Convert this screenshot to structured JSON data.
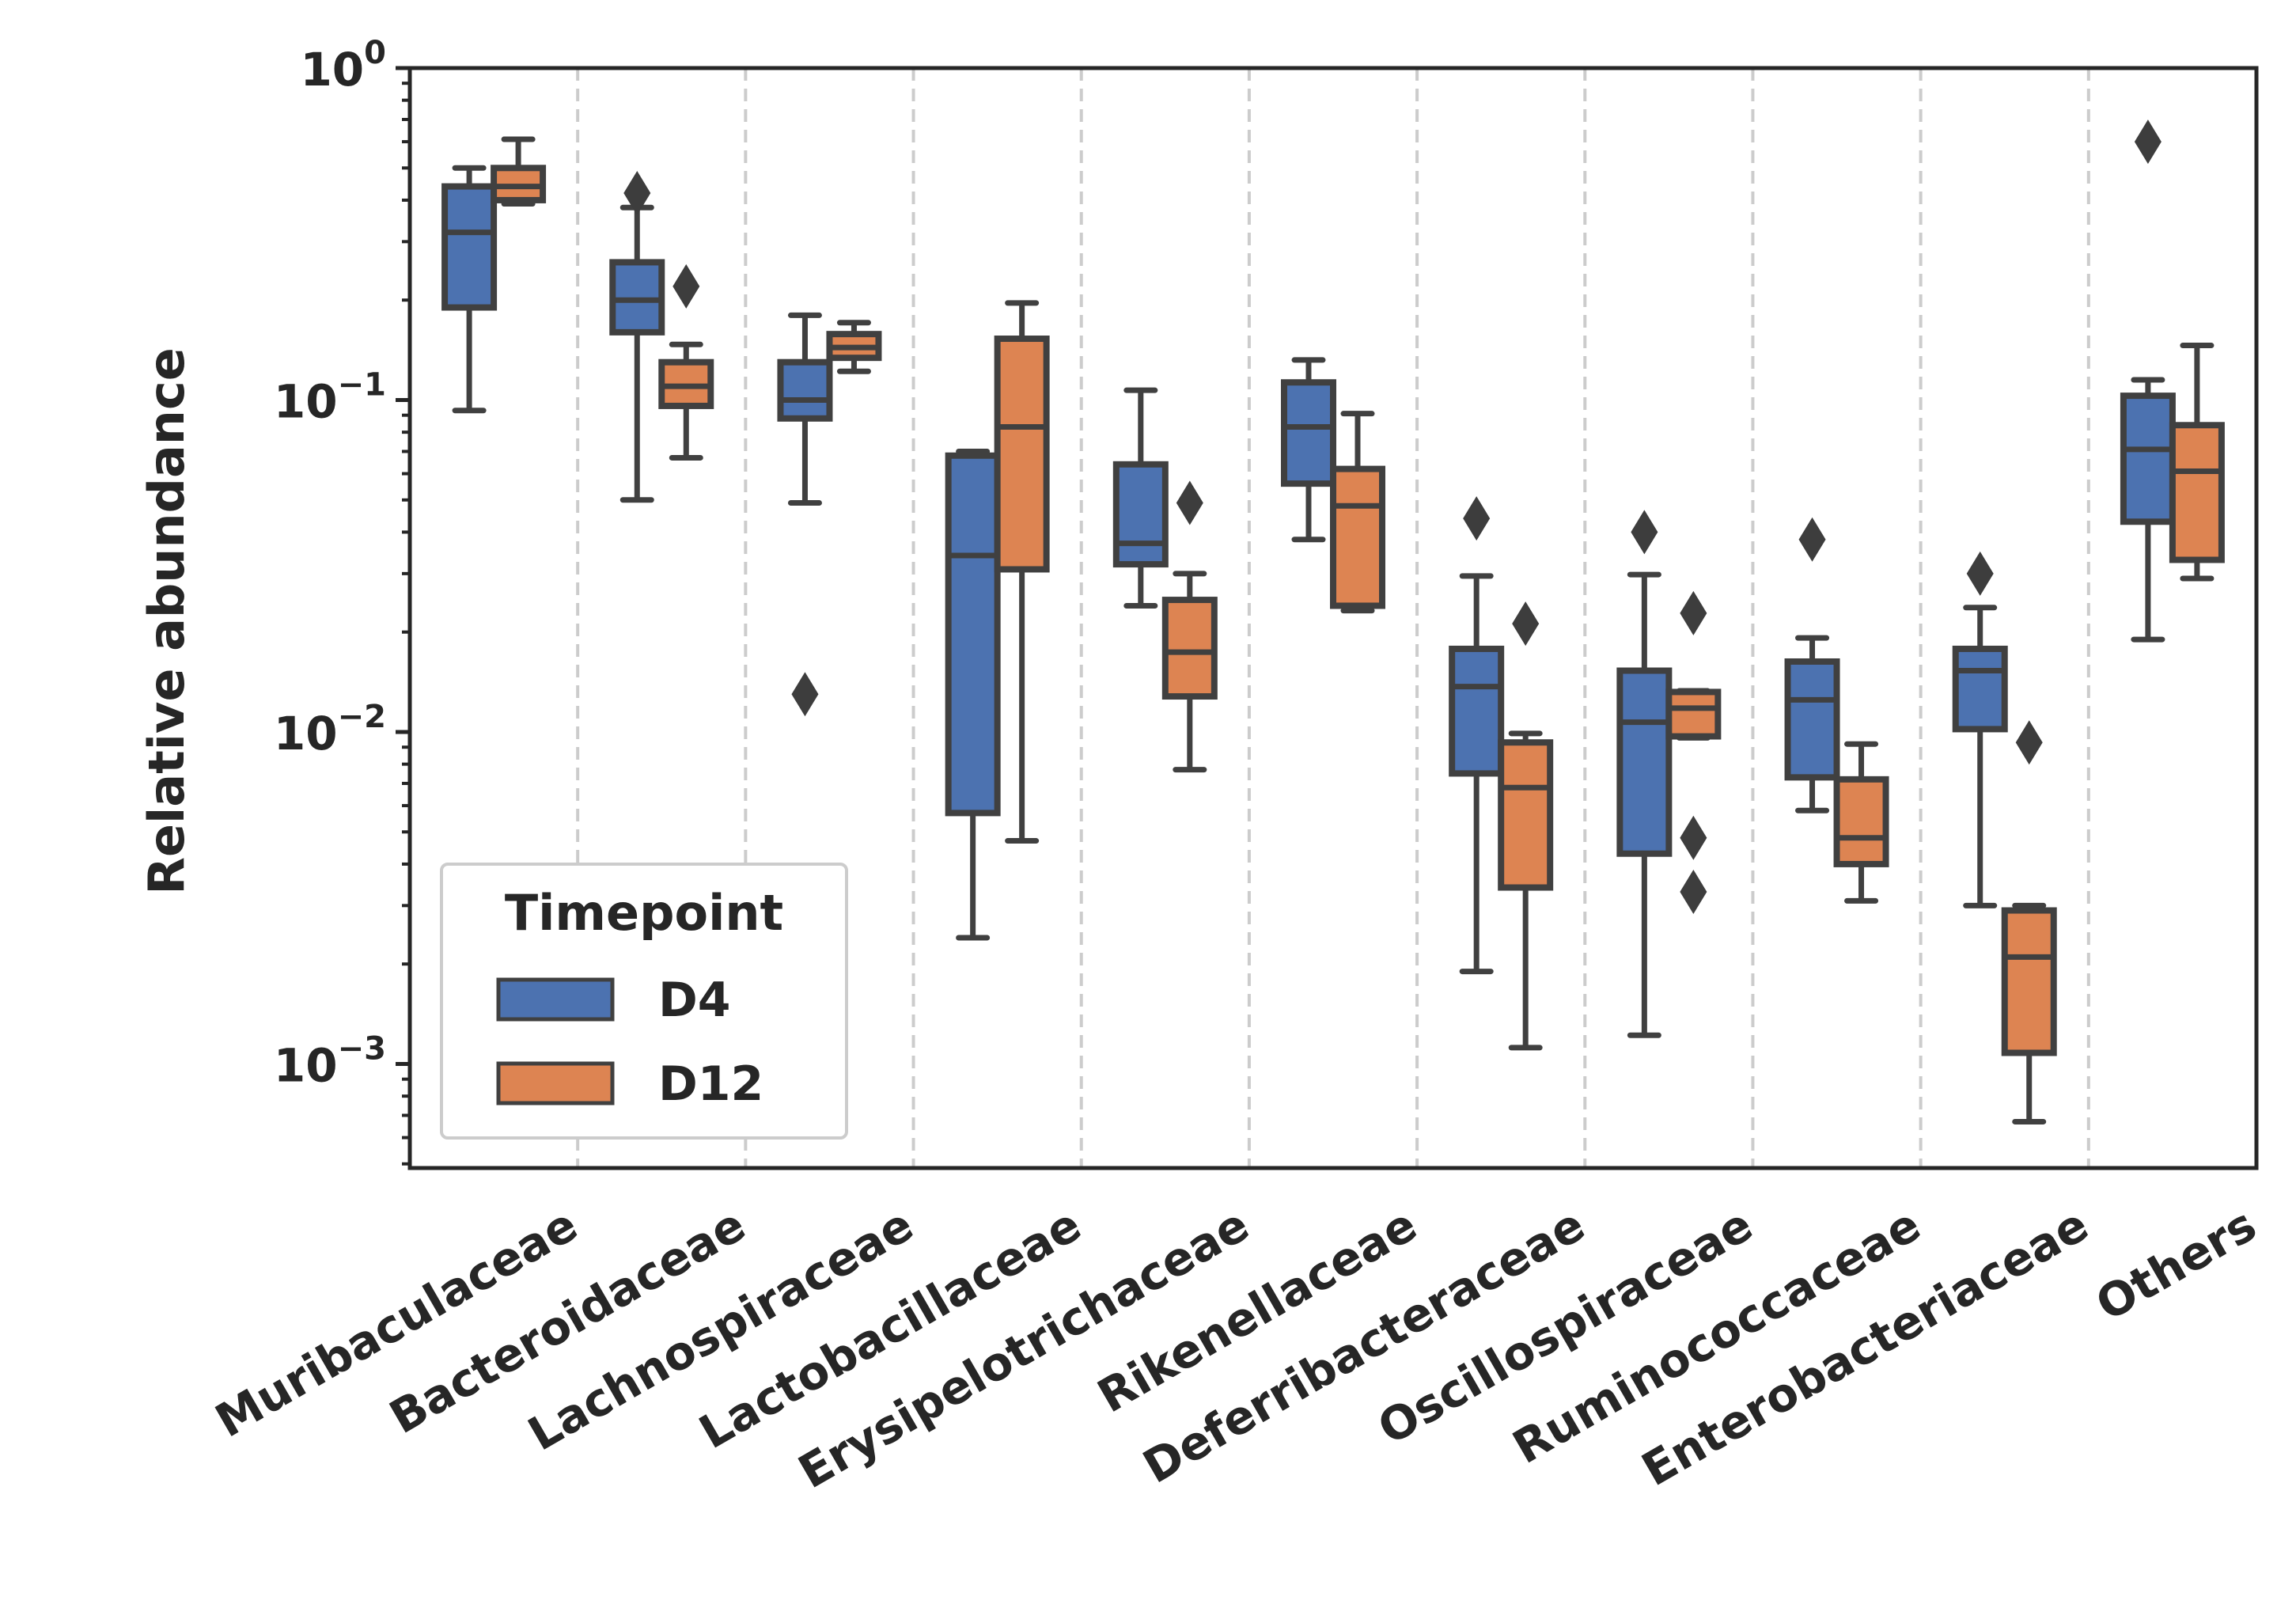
{
  "chart_data": {
    "type": "box",
    "xlabel": "",
    "ylabel": "Relative abundance",
    "yscale": "log",
    "ylim": [
      0.00048,
      1.0
    ],
    "yticks": [
      {
        "value": 1,
        "label_base": "10",
        "label_exp": "0"
      },
      {
        "value": 0.1,
        "label_base": "10",
        "label_exp": "−1"
      },
      {
        "value": 0.01,
        "label_base": "10",
        "label_exp": "−2"
      },
      {
        "value": 0.001,
        "label_base": "10",
        "label_exp": "−3"
      }
    ],
    "grid": "vertical dashed separators between categories",
    "legend": {
      "title": "Timepoint",
      "placement": "lower-left",
      "entries": [
        "D4",
        "D12"
      ]
    },
    "colors": {
      "D4": "#4c72b0",
      "D12": "#dd8452",
      "edge": "#404040",
      "separator": "#cccccc"
    },
    "categories": [
      "Muribaculaceae",
      "Bacteroidaceae",
      "Lachnospiraceae",
      "Lactobacillaceae",
      "Erysipelotrichaceae",
      "Rikenellaceae",
      "Deferribacteraceae",
      "Oscillospiraceae",
      "Ruminococcaceae",
      "Enterobacteriaceae",
      "Others"
    ],
    "series": [
      {
        "name": "D4",
        "boxes": [
          {
            "whislo": 0.093,
            "q1": 0.19,
            "med": 0.32,
            "q3": 0.44,
            "whishi": 0.5,
            "fliers": []
          },
          {
            "whislo": 0.05,
            "q1": 0.16,
            "med": 0.2,
            "q3": 0.26,
            "whishi": 0.38,
            "fliers": [
              0.42
            ]
          },
          {
            "whislo": 0.049,
            "q1": 0.088,
            "med": 0.1,
            "q3": 0.13,
            "whishi": 0.18,
            "fliers": [
              0.013
            ]
          },
          {
            "whislo": 0.0024,
            "q1": 0.0057,
            "med": 0.034,
            "q3": 0.068,
            "whishi": 0.07,
            "fliers": []
          },
          {
            "whislo": 0.024,
            "q1": 0.032,
            "med": 0.037,
            "q3": 0.064,
            "whishi": 0.107,
            "fliers": []
          },
          {
            "whislo": 0.038,
            "q1": 0.056,
            "med": 0.083,
            "q3": 0.113,
            "whishi": 0.132,
            "fliers": []
          },
          {
            "whislo": 0.0019,
            "q1": 0.0075,
            "med": 0.0137,
            "q3": 0.0178,
            "whishi": 0.0295,
            "fliers": [
              0.044
            ]
          },
          {
            "whislo": 0.00122,
            "q1": 0.0043,
            "med": 0.0107,
            "q3": 0.0153,
            "whishi": 0.0298,
            "fliers": [
              0.04
            ]
          },
          {
            "whislo": 0.0058,
            "q1": 0.0073,
            "med": 0.0125,
            "q3": 0.0163,
            "whishi": 0.0192,
            "fliers": [
              0.038
            ]
          },
          {
            "whislo": 0.003,
            "q1": 0.0102,
            "med": 0.0153,
            "q3": 0.0178,
            "whishi": 0.0237,
            "fliers": [
              0.03
            ]
          },
          {
            "whislo": 0.019,
            "q1": 0.043,
            "med": 0.071,
            "q3": 0.103,
            "whishi": 0.115,
            "fliers": [
              0.6
            ]
          }
        ]
      },
      {
        "name": "D12",
        "boxes": [
          {
            "whislo": 0.39,
            "q1": 0.4,
            "med": 0.44,
            "q3": 0.5,
            "whishi": 0.61,
            "fliers": []
          },
          {
            "whislo": 0.067,
            "q1": 0.096,
            "med": 0.11,
            "q3": 0.13,
            "whishi": 0.147,
            "fliers": [
              0.22
            ]
          },
          {
            "whislo": 0.122,
            "q1": 0.134,
            "med": 0.144,
            "q3": 0.158,
            "whishi": 0.171,
            "fliers": []
          },
          {
            "whislo": 0.0047,
            "q1": 0.0309,
            "med": 0.083,
            "q3": 0.153,
            "whishi": 0.196,
            "fliers": []
          },
          {
            "whislo": 0.0077,
            "q1": 0.0128,
            "med": 0.0174,
            "q3": 0.025,
            "whishi": 0.03,
            "fliers": [
              0.049
            ]
          },
          {
            "whislo": 0.0232,
            "q1": 0.024,
            "med": 0.048,
            "q3": 0.062,
            "whishi": 0.091,
            "fliers": []
          },
          {
            "whislo": 0.00112,
            "q1": 0.0034,
            "med": 0.0068,
            "q3": 0.0093,
            "whishi": 0.0099,
            "fliers": [
              0.0212
            ]
          },
          {
            "whislo": 0.0096,
            "q1": 0.0097,
            "med": 0.0118,
            "q3": 0.0132,
            "whishi": 0.0133,
            "fliers": [
              0.0228,
              0.0048,
              0.0033
            ]
          },
          {
            "whislo": 0.0031,
            "q1": 0.004,
            "med": 0.0048,
            "q3": 0.0072,
            "whishi": 0.0092,
            "fliers": []
          },
          {
            "whislo": 0.00067,
            "q1": 0.00108,
            "med": 0.0021,
            "q3": 0.0029,
            "whishi": 0.003,
            "fliers": [
              0.0093
            ]
          },
          {
            "whislo": 0.029,
            "q1": 0.033,
            "med": 0.061,
            "q3": 0.084,
            "whishi": 0.146,
            "fliers": []
          }
        ]
      }
    ]
  }
}
